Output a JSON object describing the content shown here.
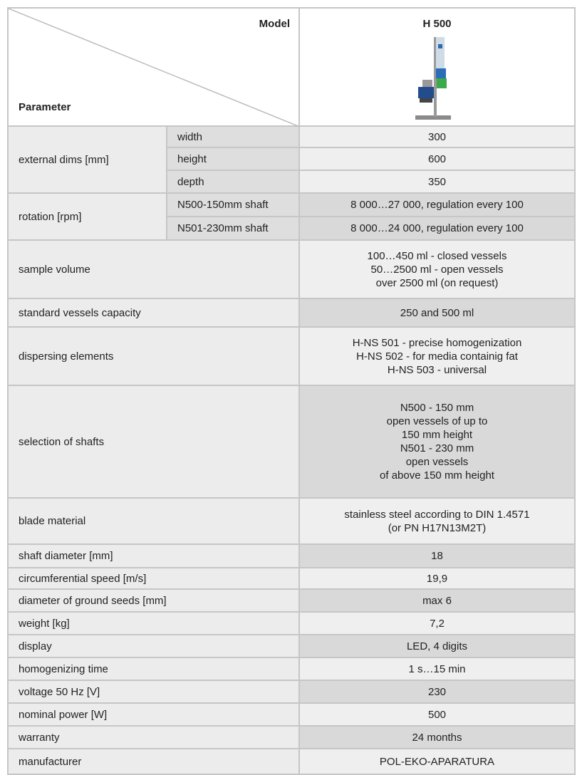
{
  "header": {
    "model_label": "Model",
    "parameter_label": "Parameter",
    "model": "H 500"
  },
  "rows": [
    {
      "parameter": "external dims [mm]",
      "sub": [
        {
          "name": "width",
          "value": "300"
        },
        {
          "name": "height",
          "value": "600"
        },
        {
          "name": "depth",
          "value": "350"
        }
      ]
    },
    {
      "parameter": "rotation [rpm]",
      "sub": [
        {
          "name": "N500-150mm shaft",
          "value": "8 000…27 000, regulation every 100"
        },
        {
          "name": "N501-230mm shaft",
          "value": "8 000…24 000, regulation every 100"
        }
      ]
    },
    {
      "parameter": "sample volume",
      "value": [
        "100…450 ml - closed vessels",
        "50…2500 ml - open vessels",
        "over 2500 ml (on request)"
      ]
    },
    {
      "parameter": "standard vessels capacity",
      "value": "250 and 500 ml"
    },
    {
      "parameter": "dispersing elements",
      "value": [
        "H-NS 501 - precise homogenization",
        "H-NS 502 - for media containig fat",
        "H-NS 503 - universal"
      ]
    },
    {
      "parameter": "selection of shafts",
      "value": [
        "N500 - 150 mm",
        "open vessels of up to",
        "150 mm height",
        "N501 - 230 mm",
        "open vessels",
        "of above 150 mm height"
      ]
    },
    {
      "parameter": "blade material",
      "value": [
        "stainless steel according to DIN 1.4571",
        "(or PN H17N13M2T)"
      ]
    },
    {
      "parameter": "shaft diameter [mm]",
      "value": "18"
    },
    {
      "parameter": "circumferential speed [m/s]",
      "value": "19,9"
    },
    {
      "parameter": "diameter of ground seeds [mm]",
      "value": "max 6"
    },
    {
      "parameter": "weight [kg]",
      "value": "7,2"
    },
    {
      "parameter": "display",
      "value": "LED, 4 digits"
    },
    {
      "parameter": "homogenizing time",
      "value": "1 s…15 min"
    },
    {
      "parameter": "voltage 50 Hz [V]",
      "value": "230"
    },
    {
      "parameter": "nominal power  [W]",
      "value": "500"
    },
    {
      "parameter": "warranty",
      "value": "24 months"
    },
    {
      "parameter": "manufacturer",
      "value": "POL-EKO-APARATURA"
    }
  ]
}
